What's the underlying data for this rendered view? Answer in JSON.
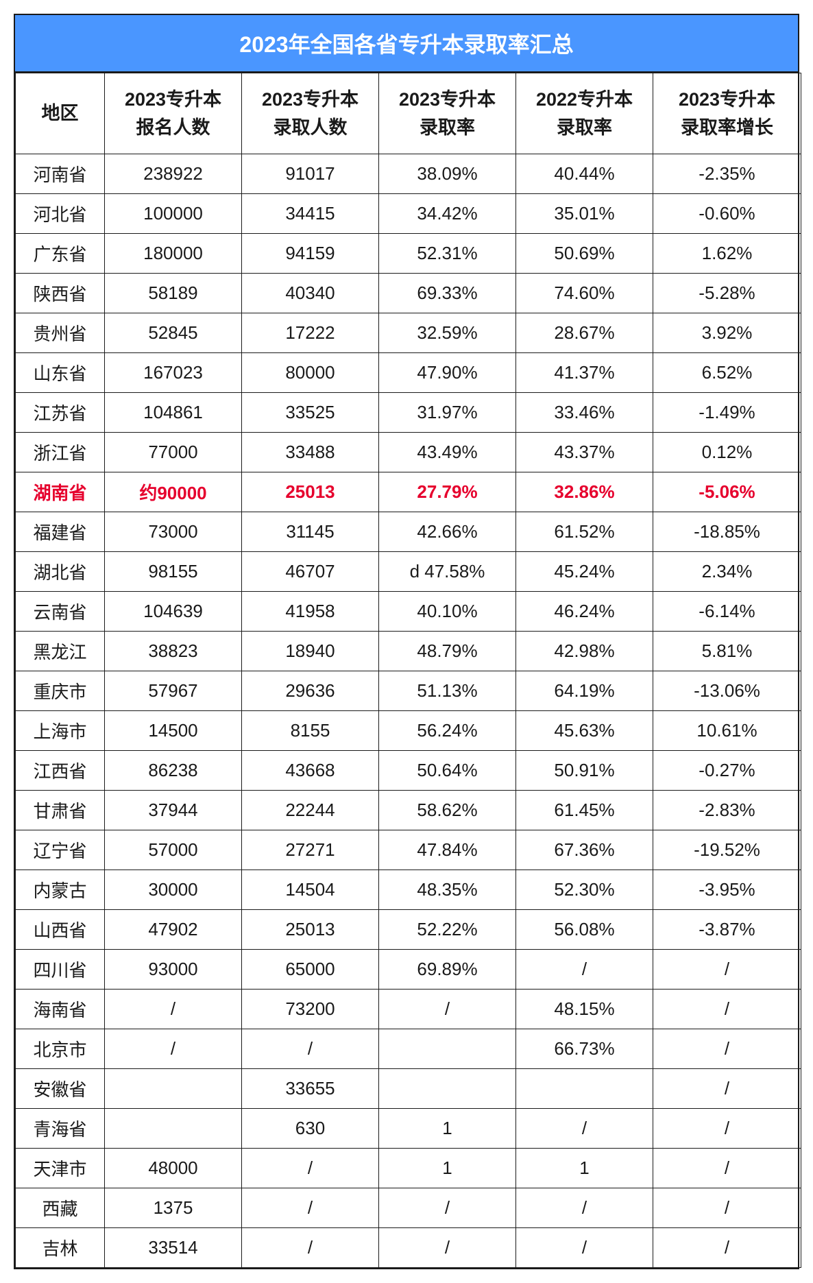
{
  "title": "2023年全国各省专升本录取率汇总",
  "columns": [
    "地区",
    "2023专升本报名人数",
    "2023专升本录取人数",
    "2023专升本录取率",
    "2022专升本录取率",
    "2023专升本录取率增长"
  ],
  "col_header_lines": [
    [
      "地区"
    ],
    [
      "2023专升本",
      "报名人数"
    ],
    [
      "2023专升本",
      "录取人数"
    ],
    [
      "2023专升本",
      "录取率"
    ],
    [
      "2022专升本",
      "录取率"
    ],
    [
      "2023专升本",
      "录取率增长"
    ]
  ],
  "highlight_color": "#e6002d",
  "header_bg": "#4a96ff",
  "border_color": "#1a1a1a",
  "text_color": "#1a1a1a",
  "font_size_cell": 26,
  "font_size_header": 27,
  "font_size_title": 32,
  "rows": [
    {
      "region": "河南省",
      "applicants": "238922",
      "admitted": "91017",
      "rate2023": "38.09%",
      "rate2022": "40.44%",
      "delta": "-2.35%",
      "hl": false
    },
    {
      "region": "河北省",
      "applicants": "100000",
      "admitted": "34415",
      "rate2023": "34.42%",
      "rate2022": "35.01%",
      "delta": "-0.60%",
      "hl": false
    },
    {
      "region": "广东省",
      "applicants": "180000",
      "admitted": "94159",
      "rate2023": "52.31%",
      "rate2022": "50.69%",
      "delta": "1.62%",
      "hl": false
    },
    {
      "region": "陕西省",
      "applicants": "58189",
      "admitted": "40340",
      "rate2023": "69.33%",
      "rate2022": "74.60%",
      "delta": "-5.28%",
      "hl": false
    },
    {
      "region": "贵州省",
      "applicants": "52845",
      "admitted": "17222",
      "rate2023": "32.59%",
      "rate2022": "28.67%",
      "delta": "3.92%",
      "hl": false
    },
    {
      "region": "山东省",
      "applicants": "167023",
      "admitted": "80000",
      "rate2023": "47.90%",
      "rate2022": "41.37%",
      "delta": "6.52%",
      "hl": false
    },
    {
      "region": "江苏省",
      "applicants": "104861",
      "admitted": "33525",
      "rate2023": "31.97%",
      "rate2022": "33.46%",
      "delta": "-1.49%",
      "hl": false
    },
    {
      "region": "浙江省",
      "applicants": "77000",
      "admitted": "33488",
      "rate2023": "43.49%",
      "rate2022": "43.37%",
      "delta": "0.12%",
      "hl": false
    },
    {
      "region": "湖南省",
      "applicants": "约90000",
      "admitted": "25013",
      "rate2023": "27.79%",
      "rate2022": "32.86%",
      "delta": "-5.06%",
      "hl": true
    },
    {
      "region": "福建省",
      "applicants": "73000",
      "admitted": "31145",
      "rate2023": "42.66%",
      "rate2022": "61.52%",
      "delta": "-18.85%",
      "hl": false
    },
    {
      "region": "湖北省",
      "applicants": "98155",
      "admitted": "46707",
      "rate2023": "d 47.58%",
      "rate2022": "45.24%",
      "delta": "2.34%",
      "hl": false
    },
    {
      "region": "云南省",
      "applicants": "104639",
      "admitted": "41958",
      "rate2023": "40.10%",
      "rate2022": "46.24%",
      "delta": "-6.14%",
      "hl": false
    },
    {
      "region": "黑龙江",
      "applicants": "38823",
      "admitted": "18940",
      "rate2023": "48.79%",
      "rate2022": "42.98%",
      "delta": "5.81%",
      "hl": false
    },
    {
      "region": "重庆市",
      "applicants": "57967",
      "admitted": "29636",
      "rate2023": "51.13%",
      "rate2022": "64.19%",
      "delta": "-13.06%",
      "hl": false
    },
    {
      "region": "上海市",
      "applicants": "14500",
      "admitted": "8155",
      "rate2023": "56.24%",
      "rate2022": "45.63%",
      "delta": "10.61%",
      "hl": false
    },
    {
      "region": "江西省",
      "applicants": "86238",
      "admitted": "43668",
      "rate2023": "50.64%",
      "rate2022": "50.91%",
      "delta": "-0.27%",
      "hl": false
    },
    {
      "region": "甘肃省",
      "applicants": "37944",
      "admitted": "22244",
      "rate2023": "58.62%",
      "rate2022": "61.45%",
      "delta": "-2.83%",
      "hl": false
    },
    {
      "region": "辽宁省",
      "applicants": "57000",
      "admitted": "27271",
      "rate2023": "47.84%",
      "rate2022": "67.36%",
      "delta": "-19.52%",
      "hl": false
    },
    {
      "region": "内蒙古",
      "applicants": "30000",
      "admitted": "14504",
      "rate2023": "48.35%",
      "rate2022": "52.30%",
      "delta": "-3.95%",
      "hl": false
    },
    {
      "region": "山西省",
      "applicants": "47902",
      "admitted": "25013",
      "rate2023": "52.22%",
      "rate2022": "56.08%",
      "delta": "-3.87%",
      "hl": false
    },
    {
      "region": "四川省",
      "applicants": "93000",
      "admitted": "65000",
      "rate2023": "69.89%",
      "rate2022": "/",
      "delta": "/",
      "hl": false
    },
    {
      "region": "海南省",
      "applicants": "/",
      "admitted": "73200",
      "rate2023": "/",
      "rate2022": "48.15%",
      "delta": "/",
      "hl": false
    },
    {
      "region": "北京市",
      "applicants": "/",
      "admitted": "/",
      "rate2023": "",
      "rate2022": "66.73%",
      "delta": "/",
      "hl": false
    },
    {
      "region": "安徽省",
      "applicants": "",
      "admitted": "33655",
      "rate2023": "",
      "rate2022": "",
      "delta": "/",
      "hl": false
    },
    {
      "region": "青海省",
      "applicants": "",
      "admitted": "630",
      "rate2023": "1",
      "rate2022": "/",
      "delta": "/",
      "hl": false
    },
    {
      "region": "天津市",
      "applicants": "48000",
      "admitted": "/",
      "rate2023": "1",
      "rate2022": "1",
      "delta": "/",
      "hl": false
    },
    {
      "region": "西藏",
      "applicants": "1375",
      "admitted": "/",
      "rate2023": "/",
      "rate2022": "/",
      "delta": "/",
      "hl": false
    },
    {
      "region": "吉林",
      "applicants": "33514",
      "admitted": "/",
      "rate2023": "/",
      "rate2022": "/",
      "delta": "/",
      "hl": false
    }
  ]
}
